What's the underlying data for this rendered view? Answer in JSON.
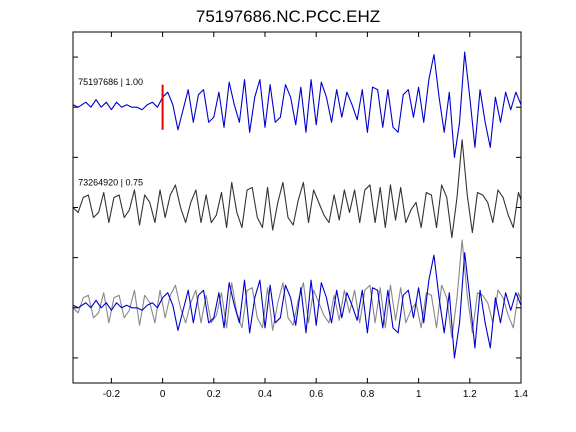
{
  "chart_data": {
    "type": "line",
    "title": "75197686.NC.PCC.EHZ",
    "xlabel": "",
    "ylabel": "",
    "xlim": [
      -0.35,
      1.4
    ],
    "xticks": [
      -0.2,
      0,
      0.2,
      0.4,
      0.6,
      0.8,
      1,
      1.2,
      1.4
    ],
    "xtick_labels": [
      "-0.2",
      "0",
      "0.2",
      "0.4",
      "0.6",
      "0.8",
      "1",
      "1.2",
      "1.4"
    ],
    "ylim": [
      -5.5,
      1.5
    ],
    "yticks": [
      -5,
      -4,
      -3,
      -2,
      -1,
      0,
      1
    ],
    "grid": false,
    "pick_marker": {
      "x": 0,
      "color": "#e60000"
    },
    "trace_labels": [
      {
        "text": "75197686 | 1.00",
        "x": -0.33,
        "y": 0.5
      },
      {
        "text": "73264920 | 0.75",
        "x": -0.33,
        "y": -1.5
      }
    ],
    "series": [
      {
        "color": "#0000cc",
        "offset": 0,
        "x": [
          -0.35,
          -0.33,
          -0.3,
          -0.28,
          -0.26,
          -0.24,
          -0.22,
          -0.2,
          -0.18,
          -0.16,
          -0.14,
          -0.12,
          -0.1,
          -0.08,
          -0.06,
          -0.04,
          -0.02,
          0,
          0.02,
          0.04,
          0.06,
          0.08,
          0.1,
          0.12,
          0.14,
          0.16,
          0.18,
          0.2,
          0.22,
          0.24,
          0.26,
          0.28,
          0.3,
          0.32,
          0.34,
          0.36,
          0.38,
          0.4,
          0.42,
          0.44,
          0.46,
          0.48,
          0.5,
          0.52,
          0.54,
          0.56,
          0.58,
          0.6,
          0.62,
          0.64,
          0.66,
          0.68,
          0.7,
          0.72,
          0.74,
          0.76,
          0.78,
          0.8,
          0.82,
          0.84,
          0.86,
          0.88,
          0.9,
          0.92,
          0.94,
          0.96,
          0.98,
          1,
          1.02,
          1.04,
          1.06,
          1.08,
          1.1,
          1.12,
          1.14,
          1.16,
          1.18,
          1.2,
          1.22,
          1.24,
          1.26,
          1.28,
          1.3,
          1.32,
          1.34,
          1.36,
          1.38,
          1.4
        ],
        "y": [
          0.05,
          0.0,
          0.1,
          0.0,
          0.15,
          0.0,
          0.1,
          -0.05,
          0.1,
          0.0,
          0.05,
          0.0,
          0.0,
          -0.05,
          0.05,
          0.1,
          0.0,
          0.2,
          0.3,
          0.05,
          -0.45,
          -0.05,
          0.35,
          -0.3,
          0.25,
          0.35,
          -0.3,
          -0.2,
          0.3,
          -0.4,
          0.5,
          0.05,
          -0.3,
          0.55,
          -0.5,
          0.2,
          0.55,
          -0.4,
          0.45,
          -0.3,
          -0.2,
          0.45,
          0.2,
          -0.35,
          0.4,
          -0.5,
          0.55,
          -0.35,
          0.5,
          0.2,
          -0.3,
          0.35,
          -0.2,
          0.3,
          0.05,
          -0.25,
          0.35,
          -0.5,
          0.4,
          0.35,
          -0.4,
          0.35,
          -0.4,
          -0.5,
          0.25,
          0.35,
          -0.2,
          0.4,
          -0.3,
          0.55,
          1.05,
          0.2,
          -0.5,
          0.3,
          -1.0,
          -0.3,
          1.1,
          0.2,
          -0.8,
          0.35,
          -0.3,
          -0.8,
          0.2,
          -0.3,
          0.3,
          -0.05,
          0.3,
          0.05
        ]
      },
      {
        "color": "#333333",
        "offset": -2,
        "x": [
          -0.35,
          -0.33,
          -0.31,
          -0.29,
          -0.27,
          -0.25,
          -0.23,
          -0.21,
          -0.19,
          -0.17,
          -0.15,
          -0.13,
          -0.11,
          -0.09,
          -0.07,
          -0.05,
          -0.03,
          -0.01,
          0.01,
          0.03,
          0.05,
          0.07,
          0.09,
          0.11,
          0.13,
          0.15,
          0.17,
          0.19,
          0.21,
          0.23,
          0.25,
          0.27,
          0.29,
          0.31,
          0.33,
          0.35,
          0.37,
          0.39,
          0.41,
          0.43,
          0.45,
          0.47,
          0.49,
          0.51,
          0.53,
          0.55,
          0.57,
          0.59,
          0.61,
          0.63,
          0.65,
          0.67,
          0.69,
          0.71,
          0.73,
          0.75,
          0.77,
          0.79,
          0.81,
          0.83,
          0.85,
          0.87,
          0.89,
          0.91,
          0.93,
          0.95,
          0.97,
          0.99,
          1.01,
          1.03,
          1.05,
          1.07,
          1.09,
          1.11,
          1.13,
          1.15,
          1.17,
          1.19,
          1.21,
          1.23,
          1.25,
          1.27,
          1.29,
          1.31,
          1.33,
          1.35,
          1.37,
          1.39,
          1.4
        ],
        "y": [
          0.0,
          -0.1,
          0.2,
          0.25,
          -0.2,
          -0.1,
          0.3,
          -0.3,
          0.2,
          0.25,
          -0.2,
          -0.05,
          0.35,
          -0.35,
          0.25,
          0.1,
          -0.3,
          0.35,
          -0.2,
          0.25,
          0.45,
          0.0,
          -0.3,
          0.1,
          0.35,
          -0.3,
          0.25,
          -0.3,
          -0.15,
          0.3,
          -0.4,
          0.5,
          -0.1,
          -0.4,
          0.35,
          0.4,
          -0.2,
          -0.4,
          0.4,
          -0.45,
          0.1,
          0.5,
          -0.2,
          -0.35,
          0.15,
          0.5,
          -0.3,
          0.35,
          0.1,
          -0.15,
          -0.3,
          0.25,
          -0.25,
          0.35,
          -0.1,
          0.35,
          -0.3,
          0.35,
          0.45,
          -0.3,
          0.4,
          -0.4,
          0.45,
          -0.25,
          0.4,
          -0.3,
          -0.05,
          0.1,
          -0.4,
          0.3,
          0.25,
          -0.4,
          0.45,
          0.2,
          -0.6,
          0.2,
          1.35,
          0.25,
          -0.5,
          0.3,
          0.25,
          0.1,
          -0.3,
          0.35,
          0.2,
          -0.15,
          -0.4,
          0.3,
          0.15
        ]
      },
      {
        "color": "#0000cc",
        "offset": -4,
        "x": [
          -0.35,
          -0.33,
          -0.3,
          -0.28,
          -0.26,
          -0.24,
          -0.22,
          -0.2,
          -0.18,
          -0.16,
          -0.14,
          -0.12,
          -0.1,
          -0.08,
          -0.06,
          -0.04,
          -0.02,
          0,
          0.02,
          0.04,
          0.06,
          0.08,
          0.1,
          0.12,
          0.14,
          0.16,
          0.18,
          0.2,
          0.22,
          0.24,
          0.26,
          0.28,
          0.3,
          0.32,
          0.34,
          0.36,
          0.38,
          0.4,
          0.42,
          0.44,
          0.46,
          0.48,
          0.5,
          0.52,
          0.54,
          0.56,
          0.58,
          0.6,
          0.62,
          0.64,
          0.66,
          0.68,
          0.7,
          0.72,
          0.74,
          0.76,
          0.78,
          0.8,
          0.82,
          0.84,
          0.86,
          0.88,
          0.9,
          0.92,
          0.94,
          0.96,
          0.98,
          1,
          1.02,
          1.04,
          1.06,
          1.08,
          1.1,
          1.12,
          1.14,
          1.16,
          1.18,
          1.2,
          1.22,
          1.24,
          1.26,
          1.28,
          1.3,
          1.32,
          1.34,
          1.36,
          1.38,
          1.4
        ],
        "y": [
          0.05,
          0.0,
          0.1,
          0.0,
          0.15,
          0.0,
          0.1,
          -0.05,
          0.1,
          0.0,
          0.05,
          0.0,
          0.0,
          -0.05,
          0.05,
          0.1,
          0.0,
          0.2,
          0.3,
          0.05,
          -0.45,
          -0.05,
          0.35,
          -0.3,
          0.25,
          0.35,
          -0.3,
          -0.2,
          0.3,
          -0.4,
          0.5,
          0.05,
          -0.3,
          0.55,
          -0.5,
          0.2,
          0.55,
          -0.4,
          0.45,
          -0.3,
          -0.2,
          0.45,
          0.2,
          -0.35,
          0.4,
          -0.5,
          0.55,
          -0.35,
          0.5,
          0.2,
          -0.3,
          0.35,
          -0.2,
          0.3,
          0.05,
          -0.25,
          0.35,
          -0.5,
          0.4,
          0.35,
          -0.4,
          0.35,
          -0.4,
          -0.5,
          0.25,
          0.35,
          -0.2,
          0.4,
          -0.3,
          0.55,
          1.05,
          0.2,
          -0.5,
          0.3,
          -1.0,
          -0.3,
          1.1,
          0.2,
          -0.8,
          0.35,
          -0.3,
          -0.8,
          0.2,
          -0.3,
          0.3,
          -0.05,
          0.3,
          0.05
        ]
      },
      {
        "color": "#888888",
        "offset": -4,
        "x": [
          -0.35,
          -0.33,
          -0.31,
          -0.29,
          -0.27,
          -0.25,
          -0.23,
          -0.21,
          -0.19,
          -0.17,
          -0.15,
          -0.13,
          -0.11,
          -0.09,
          -0.07,
          -0.05,
          -0.03,
          -0.01,
          0.01,
          0.03,
          0.05,
          0.07,
          0.09,
          0.11,
          0.13,
          0.15,
          0.17,
          0.19,
          0.21,
          0.23,
          0.25,
          0.27,
          0.29,
          0.31,
          0.33,
          0.35,
          0.37,
          0.39,
          0.41,
          0.43,
          0.45,
          0.47,
          0.49,
          0.51,
          0.53,
          0.55,
          0.57,
          0.59,
          0.61,
          0.63,
          0.65,
          0.67,
          0.69,
          0.71,
          0.73,
          0.75,
          0.77,
          0.79,
          0.81,
          0.83,
          0.85,
          0.87,
          0.89,
          0.91,
          0.93,
          0.95,
          0.97,
          0.99,
          1.01,
          1.03,
          1.05,
          1.07,
          1.09,
          1.11,
          1.13,
          1.15,
          1.17,
          1.19,
          1.21,
          1.23,
          1.25,
          1.27,
          1.29,
          1.31,
          1.33,
          1.35,
          1.37,
          1.39,
          1.4
        ],
        "y": [
          0.0,
          -0.1,
          0.2,
          0.25,
          -0.2,
          -0.1,
          0.3,
          -0.3,
          0.2,
          0.25,
          -0.2,
          -0.05,
          0.35,
          -0.35,
          0.25,
          0.1,
          -0.3,
          0.35,
          -0.2,
          0.25,
          0.45,
          0.0,
          -0.3,
          0.1,
          0.35,
          -0.3,
          0.25,
          -0.3,
          -0.15,
          0.3,
          -0.4,
          0.5,
          -0.1,
          -0.4,
          0.35,
          0.4,
          -0.2,
          -0.4,
          0.4,
          -0.45,
          0.1,
          0.5,
          -0.2,
          -0.35,
          0.15,
          0.5,
          -0.3,
          0.35,
          0.1,
          -0.15,
          -0.3,
          0.25,
          -0.25,
          0.35,
          -0.1,
          0.35,
          -0.3,
          0.35,
          0.45,
          -0.3,
          0.4,
          -0.4,
          0.45,
          -0.25,
          0.4,
          -0.3,
          -0.05,
          0.1,
          -0.4,
          0.3,
          0.25,
          -0.4,
          0.45,
          0.2,
          -0.6,
          0.2,
          1.35,
          0.25,
          -0.5,
          0.3,
          0.25,
          0.1,
          -0.3,
          0.35,
          0.2,
          -0.15,
          -0.4,
          0.3,
          0.15
        ]
      }
    ]
  }
}
